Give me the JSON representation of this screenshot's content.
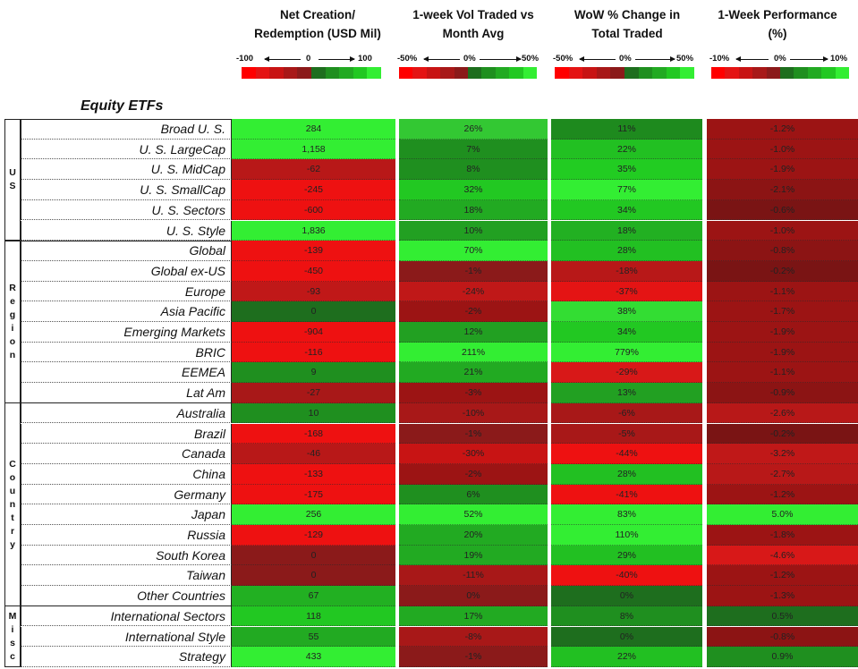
{
  "columns": [
    {
      "line1": "Net Creation/",
      "line2": "Redemption (USD Mil)",
      "scale_left": "-100",
      "scale_mid": "0",
      "scale_right": "100"
    },
    {
      "line1": "1-week Vol Traded vs",
      "line2": "Month Avg",
      "scale_left": "-50%",
      "scale_mid": "0%",
      "scale_right": "50%"
    },
    {
      "line1": "WoW % Change in",
      "line2": "Total Traded",
      "scale_left": "-50%",
      "scale_mid": "0%",
      "scale_right": "50%"
    },
    {
      "line1": "1-Week Performance",
      "line2": "(%)",
      "scale_left": "-10%",
      "scale_mid": "0%",
      "scale_right": "10%"
    }
  ],
  "scale_colors": [
    "#ff0000",
    "#e41414",
    "#c81414",
    "#a81818",
    "#8b1a1a",
    "#1e6e1e",
    "#1f8f1f",
    "#22aa22",
    "#22c822",
    "#33ee33"
  ],
  "section_title": "Equity ETFs",
  "groups": [
    {
      "id": "us",
      "letters": [
        "U",
        "S"
      ],
      "rows": [
        {
          "label": "Broad U. S.",
          "values": [
            "284",
            "26%",
            "11%",
            "-1.2%"
          ],
          "colors": [
            "#33ee33",
            "#33c833",
            "#1e8a1e",
            "#9c1414"
          ]
        },
        {
          "label": "U. S. LargeCap",
          "values": [
            "1,158",
            "7%",
            "22%",
            "-1.0%"
          ],
          "colors": [
            "#33ee33",
            "#1f8f1f",
            "#22c022",
            "#9c1414"
          ]
        },
        {
          "label": "U. S. MidCap",
          "values": [
            "-62",
            "8%",
            "35%",
            "-1.9%"
          ],
          "colors": [
            "#b81818",
            "#1f8f1f",
            "#22cc22",
            "#9c1414"
          ]
        },
        {
          "label": "U. S. SmallCap",
          "values": [
            "-245",
            "32%",
            "77%",
            "-2.1%"
          ],
          "colors": [
            "#ee1111",
            "#22c822",
            "#33ee33",
            "#8c1414"
          ]
        },
        {
          "label": "U. S. Sectors",
          "values": [
            "-600",
            "18%",
            "34%",
            "-0.6%"
          ],
          "colors": [
            "#ee1111",
            "#22aa22",
            "#22c822",
            "#7a1414"
          ]
        },
        {
          "label": "U. S. Style",
          "values": [
            "1,836",
            "10%",
            "18%",
            "-1.0%"
          ],
          "colors": [
            "#33ee33",
            "#22a022",
            "#22b022",
            "#9c1414"
          ]
        }
      ]
    },
    {
      "id": "region",
      "letters": [
        "R",
        "e",
        "g",
        "i",
        "o",
        "n"
      ],
      "rows": [
        {
          "label": "Global",
          "values": [
            "-139",
            "70%",
            "28%",
            "-0.8%"
          ],
          "colors": [
            "#ee1111",
            "#33ee33",
            "#22c022",
            "#8c1414"
          ]
        },
        {
          "label": "Global ex-US",
          "values": [
            "-450",
            "-1%",
            "-18%",
            "-0.2%"
          ],
          "colors": [
            "#ee1111",
            "#8b1a1a",
            "#b81818",
            "#7a1414"
          ]
        },
        {
          "label": "Europe",
          "values": [
            "-93",
            "-24%",
            "-37%",
            "-1.1%"
          ],
          "colors": [
            "#c01818",
            "#c01818",
            "#e41414",
            "#9c1414"
          ]
        },
        {
          "label": "Asia Pacific",
          "values": [
            "0",
            "-2%",
            "38%",
            "-1.7%"
          ],
          "colors": [
            "#1e6e1e",
            "#9c1414",
            "#33dd33",
            "#9c1414"
          ]
        },
        {
          "label": "Emerging Markets",
          "values": [
            "-904",
            "12%",
            "34%",
            "-1.9%"
          ],
          "colors": [
            "#ee1111",
            "#22a022",
            "#22c822",
            "#9c1414"
          ]
        },
        {
          "label": "BRIC",
          "values": [
            "-116",
            "211%",
            "779%",
            "-1.9%"
          ],
          "colors": [
            "#ee1111",
            "#33ee33",
            "#33ee33",
            "#9c1414"
          ]
        },
        {
          "label": "EEMEA",
          "values": [
            "9",
            "21%",
            "-29%",
            "-1.1%"
          ],
          "colors": [
            "#1f8f1f",
            "#22aa22",
            "#d81818",
            "#9c1414"
          ]
        },
        {
          "label": "Lat Am",
          "values": [
            "-27",
            "-3%",
            "13%",
            "-0.9%"
          ],
          "colors": [
            "#a81818",
            "#9c1414",
            "#22a022",
            "#8c1414"
          ]
        }
      ]
    },
    {
      "id": "country",
      "letters": [
        "C",
        "o",
        "u",
        "n",
        "t",
        "r",
        "y"
      ],
      "rows": [
        {
          "label": "Australia",
          "values": [
            "10",
            "-10%",
            "-6%",
            "-2.6%"
          ],
          "colors": [
            "#1f8f1f",
            "#a81818",
            "#a81818",
            "#b81818"
          ]
        },
        {
          "label": "Brazil",
          "values": [
            "-168",
            "-1%",
            "-5%",
            "-0.2%"
          ],
          "colors": [
            "#ee1111",
            "#8b1a1a",
            "#a81818",
            "#7a1414"
          ]
        },
        {
          "label": "Canada",
          "values": [
            "-46",
            "-30%",
            "-44%",
            "-3.2%"
          ],
          "colors": [
            "#b81818",
            "#c81414",
            "#ee1111",
            "#c01818"
          ]
        },
        {
          "label": "China",
          "values": [
            "-133",
            "-2%",
            "28%",
            "-2.7%"
          ],
          "colors": [
            "#ee1111",
            "#9c1414",
            "#22c022",
            "#b81818"
          ]
        },
        {
          "label": "Germany",
          "values": [
            "-175",
            "6%",
            "-41%",
            "-1.2%"
          ],
          "colors": [
            "#ee1111",
            "#1f8f1f",
            "#ee1111",
            "#9c1414"
          ]
        },
        {
          "label": "Japan",
          "values": [
            "256",
            "52%",
            "83%",
            "5.0%"
          ],
          "colors": [
            "#33ee33",
            "#33ee33",
            "#33ee33",
            "#33ee33"
          ]
        },
        {
          "label": "Russia",
          "values": [
            "-129",
            "20%",
            "110%",
            "-1.8%"
          ],
          "colors": [
            "#ee1111",
            "#22aa22",
            "#33ee33",
            "#9c1414"
          ]
        },
        {
          "label": "South Korea",
          "values": [
            "0",
            "19%",
            "29%",
            "-4.6%"
          ],
          "colors": [
            "#8b1a1a",
            "#22aa22",
            "#22c022",
            "#d81818"
          ]
        },
        {
          "label": "Taiwan",
          "values": [
            "0",
            "-11%",
            "-40%",
            "-1.2%"
          ],
          "colors": [
            "#8b1a1a",
            "#a81818",
            "#ee1111",
            "#9c1414"
          ]
        },
        {
          "label": "Other Countries",
          "values": [
            "67",
            "0%",
            "0%",
            "-1.3%"
          ],
          "colors": [
            "#22b022",
            "#8b1a1a",
            "#1e6e1e",
            "#9c1414"
          ]
        }
      ]
    },
    {
      "id": "misc",
      "letters": [
        "M",
        "i",
        "s",
        "c"
      ],
      "rows": [
        {
          "label": "International Sectors",
          "values": [
            "118",
            "17%",
            "8%",
            "0.5%"
          ],
          "colors": [
            "#22c822",
            "#22aa22",
            "#1f8f1f",
            "#1e6e1e"
          ]
        },
        {
          "label": "International Style",
          "values": [
            "55",
            "-8%",
            "0%",
            "-0.8%"
          ],
          "colors": [
            "#22aa22",
            "#a81818",
            "#1e6e1e",
            "#8c1414"
          ]
        },
        {
          "label": "Strategy",
          "values": [
            "433",
            "-1%",
            "22%",
            "0.9%"
          ],
          "colors": [
            "#33ee33",
            "#8b1a1a",
            "#22c022",
            "#1f8f1f"
          ]
        }
      ]
    }
  ]
}
